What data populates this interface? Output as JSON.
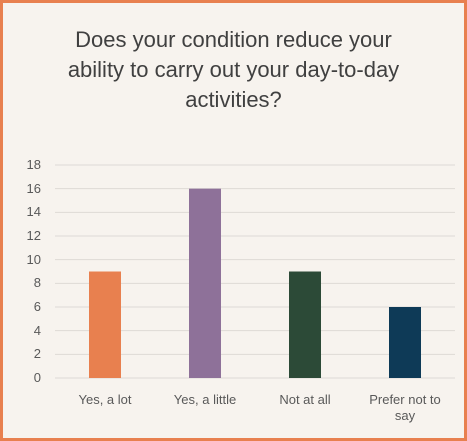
{
  "chart_data": {
    "type": "bar",
    "title": "Does your condition reduce your ability to carry out your day-to-day activities?",
    "categories": [
      "Yes, a lot",
      "Yes, a little",
      "Not at all",
      "Prefer not to say"
    ],
    "values": [
      9,
      16,
      9,
      6
    ],
    "colors": [
      "#e8804f",
      "#8e7199",
      "#2c4a37",
      "#0e3a57"
    ],
    "ylim": [
      0,
      18
    ],
    "yticks": [
      0,
      2,
      4,
      6,
      8,
      10,
      12,
      14,
      16,
      18
    ],
    "grid": true
  }
}
